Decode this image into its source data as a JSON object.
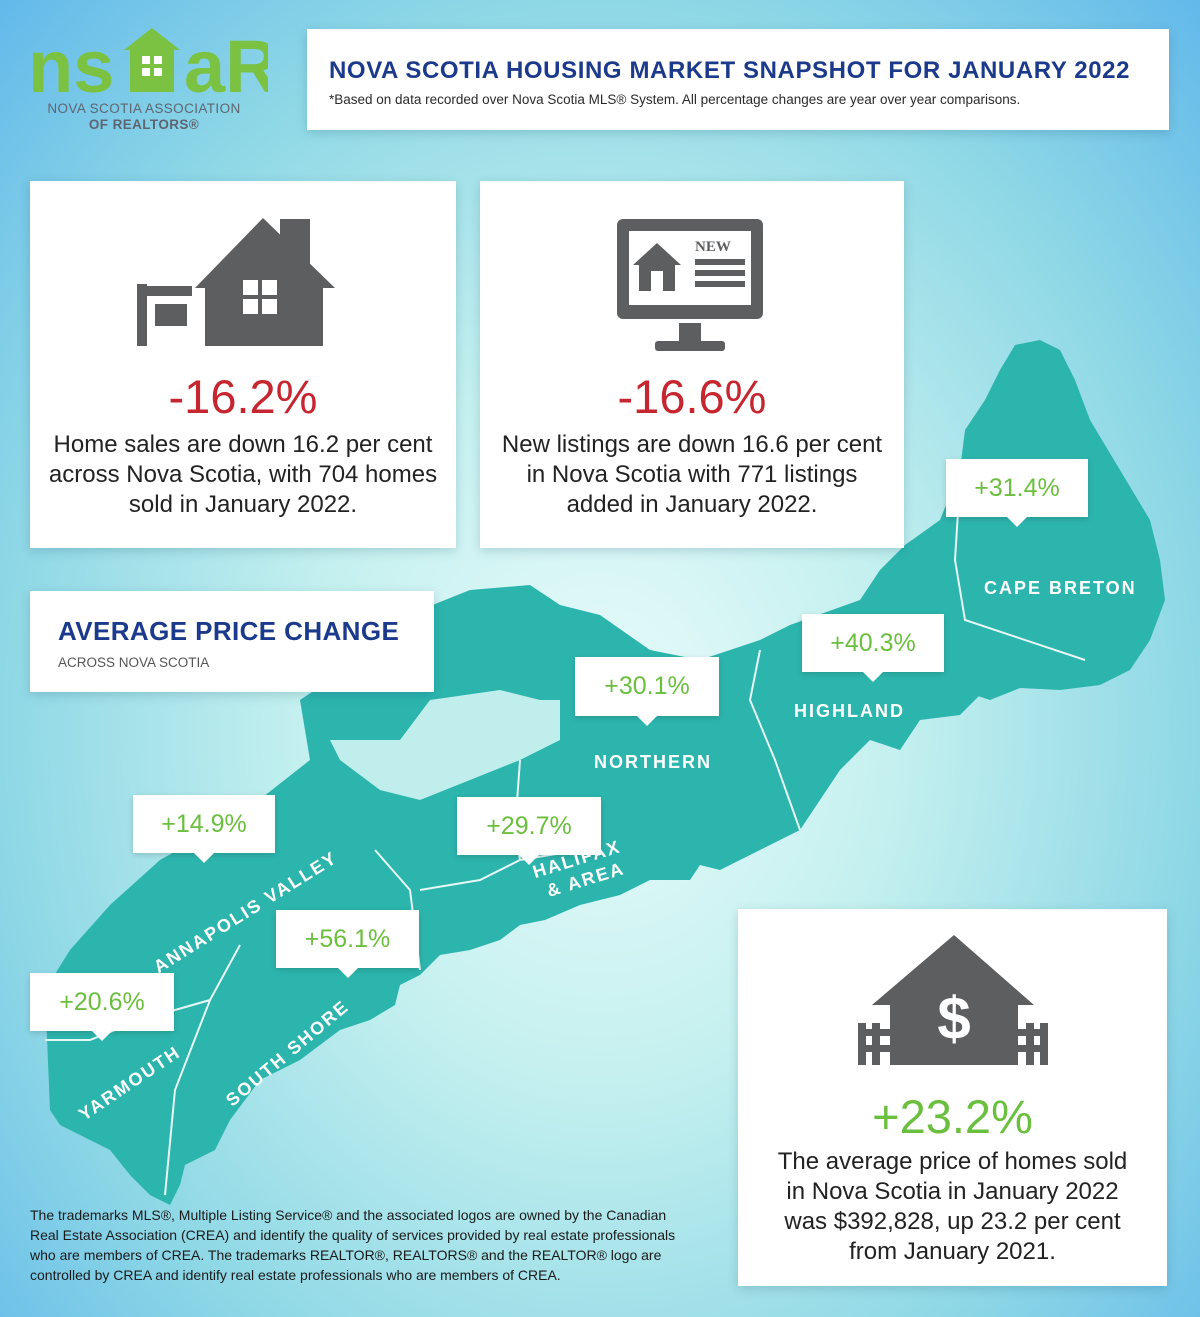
{
  "logo": {
    "brand": "ns⌂aR",
    "line1": "NOVA SCOTIA ASSOCIATION",
    "line2": "OF REALTORS®"
  },
  "header": {
    "title": "NOVA SCOTIA HOUSING MARKET SNAPSHOT FOR JANUARY 2022",
    "subtitle": "*Based on data recorded over Nova Scotia MLS® System. All percentage changes are year over year comparisons."
  },
  "stats": {
    "sales": {
      "icon": "house-sold-sign-icon",
      "value": "-16.2%",
      "line1": "Home sales are down 16.2 per cent",
      "line2": "across Nova Scotia, with 704 homes",
      "line3": "sold in January 2022."
    },
    "listings": {
      "icon": "computer-new-listing-icon",
      "badge": "NEW",
      "value": "-16.6%",
      "line1": "New listings are down 16.6 per cent",
      "line2": "in Nova Scotia with 771 listings",
      "line3": "added in January 2022."
    },
    "price": {
      "icon": "house-dollar-icon",
      "value": "+23.2%",
      "line1": "The average price of homes sold",
      "line2": "in Nova Scotia in January 2022",
      "line3": "was $392,828, up 23.2 per cent",
      "line4": "from January 2021."
    }
  },
  "average_price": {
    "title": "AVERAGE PRICE CHANGE",
    "subtitle": "ACROSS NOVA SCOTIA"
  },
  "regions": [
    {
      "name": "CAPE BRETON",
      "change": "+31.4%"
    },
    {
      "name": "HIGHLAND",
      "change": "+40.3%"
    },
    {
      "name": "NORTHERN",
      "change": "+30.1%"
    },
    {
      "name": "HALIFAX & AREA",
      "name_line1": "HALIFAX",
      "name_line2": "& AREA",
      "change": "+29.7%"
    },
    {
      "name": "ANNAPOLIS VALLEY",
      "change": "+14.9%"
    },
    {
      "name": "SOUTH SHORE",
      "change": "+56.1%"
    },
    {
      "name": "YARMOUTH",
      "change": "+20.6%"
    }
  ],
  "colors": {
    "map_fill": "#2cb5ad",
    "title_blue": "#1c3a8b",
    "negative_red": "#c6262f",
    "positive_green": "#6bbf3e",
    "icon_gray": "#5d5e60",
    "logo_green": "#7cc242"
  },
  "footer": {
    "line1": "The trademarks MLS®, Multiple Listing Service® and the associated logos are owned by the Canadian",
    "line2": "Real Estate Association (CREA) and identify the quality of services provided by real estate professionals",
    "line3": "who are members of CREA. The trademarks REALTOR®, REALTORS® and the REALTOR® logo are",
    "line4": "controlled by CREA and identify real estate professionals who are members of CREA."
  }
}
